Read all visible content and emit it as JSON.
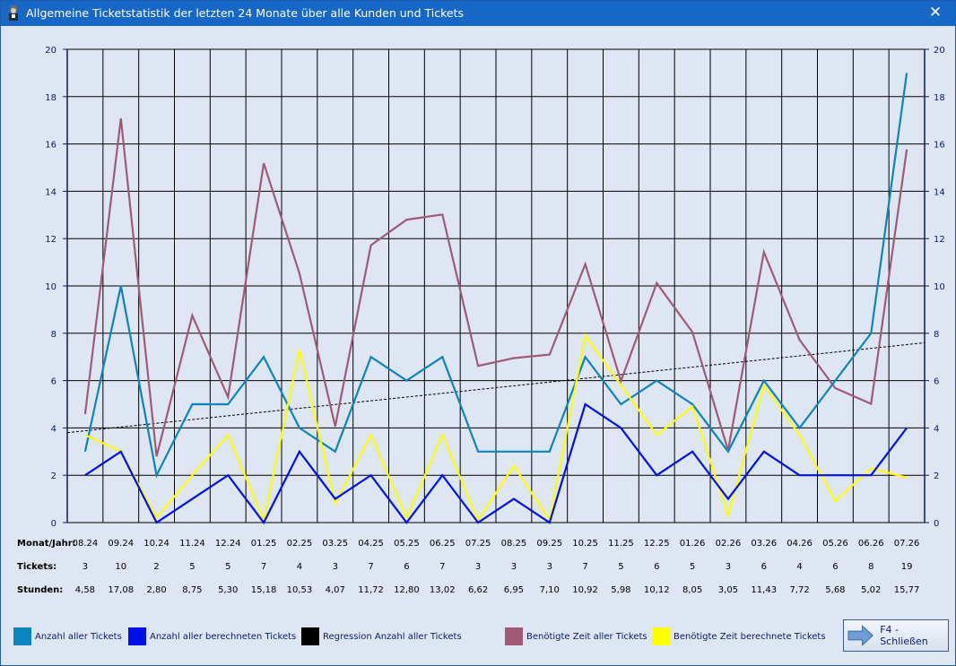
{
  "window": {
    "title": "Allgemeine Ticketstatistik der letzten 24 Monate über alle Kunden und Tickets",
    "close_symbol": "✕"
  },
  "chart_data": {
    "type": "line",
    "ylim": [
      0,
      20
    ],
    "yticks": [
      0,
      2,
      4,
      6,
      8,
      10,
      12,
      14,
      16,
      18,
      20
    ],
    "grid": true,
    "categories": [
      "08.24",
      "09.24",
      "10.24",
      "11.24",
      "12.24",
      "01.25",
      "02.25",
      "03.25",
      "04.25",
      "05.25",
      "06.25",
      "07.25",
      "08.25",
      "09.25",
      "10.25",
      "11.25",
      "12.25",
      "01.26",
      "02.26",
      "03.26",
      "04.26",
      "05.26",
      "06.26",
      "07.26"
    ],
    "series": [
      {
        "name": "Anzahl aller Tickets",
        "color": "#0a85bf",
        "values": [
          3,
          10,
          2,
          5,
          5,
          7,
          4,
          3,
          7,
          6,
          7,
          3,
          3,
          3,
          7,
          5,
          6,
          5,
          3,
          6,
          4,
          6,
          8,
          19
        ]
      },
      {
        "name": "Anzahl aller berechneten Tickets",
        "color": "#0010e8",
        "values": [
          2,
          3,
          0,
          1,
          2,
          0,
          3,
          1,
          2,
          0,
          2,
          0,
          1,
          0,
          5,
          4,
          2,
          3,
          1,
          3,
          2,
          2,
          2,
          4
        ]
      },
      {
        "name": "Regression Anzahl aller Tickets",
        "color": "#000000",
        "style": "dashed",
        "start": 3.8,
        "end": 7.6
      },
      {
        "name": "Benötigte Zeit aller Tickets",
        "color": "#a05a78",
        "values": [
          4.58,
          17.08,
          2.8,
          8.75,
          5.3,
          15.18,
          10.53,
          4.07,
          11.72,
          12.8,
          13.02,
          6.62,
          6.95,
          7.1,
          10.92,
          5.98,
          10.12,
          8.05,
          3.05,
          11.43,
          7.72,
          5.68,
          5.02,
          15.77
        ]
      },
      {
        "name": "Benötigte Zeit berechnete Tickets",
        "color": "#ffff00",
        "values": [
          3.7,
          3.0,
          0.2,
          2.0,
          3.7,
          0.1,
          7.3,
          0.8,
          3.7,
          0.2,
          3.7,
          0.1,
          2.4,
          0.1,
          7.9,
          5.8,
          3.7,
          4.9,
          0.3,
          5.8,
          3.7,
          0.9,
          2.3,
          1.9
        ]
      }
    ]
  },
  "table": {
    "rows": [
      {
        "label": "Monat/Jahr:",
        "values": [
          "08.24",
          "09.24",
          "10.24",
          "11.24",
          "12.24",
          "01.25",
          "02.25",
          "03.25",
          "04.25",
          "05.25",
          "06.25",
          "07.25",
          "08.25",
          "09.25",
          "10.25",
          "11.25",
          "12.25",
          "01.26",
          "02.26",
          "03.26",
          "04.26",
          "05.26",
          "06.26",
          "07.26"
        ]
      },
      {
        "label": "Tickets:",
        "values": [
          "3",
          "10",
          "2",
          "5",
          "5",
          "7",
          "4",
          "3",
          "7",
          "6",
          "7",
          "3",
          "3",
          "3",
          "7",
          "5",
          "6",
          "5",
          "3",
          "6",
          "4",
          "6",
          "8",
          "19"
        ]
      },
      {
        "label": "Stunden:",
        "values": [
          "4,58",
          "17,08",
          "2,80",
          "8,75",
          "5,30",
          "15,18",
          "10,53",
          "4,07",
          "11,72",
          "12,80",
          "13,02",
          "6,62",
          "6,95",
          "7,10",
          "10,92",
          "5,98",
          "10,12",
          "8,05",
          "3,05",
          "11,43",
          "7,72",
          "5,68",
          "5,02",
          "15,77"
        ]
      }
    ]
  },
  "legend": [
    {
      "label": "Anzahl aller Tickets",
      "color": "#0a85bf"
    },
    {
      "label": "Anzahl aller berechneten Tickets",
      "color": "#0010e8"
    },
    {
      "label": "Regression Anzahl aller Tickets",
      "color": "#000000"
    },
    {
      "label": "Benötigte Zeit aller Tickets",
      "color": "#a05a78"
    },
    {
      "label": "Benötigte Zeit berechnete Tickets",
      "color": "#ffff00"
    }
  ],
  "close_button": {
    "label": "F4 - Schließen",
    "icon": "arrow-right-icon"
  }
}
